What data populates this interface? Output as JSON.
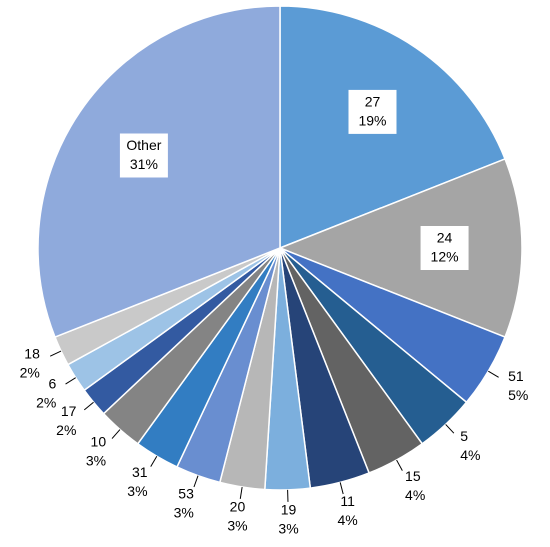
{
  "chart_data": {
    "type": "pie",
    "categories": [
      "27",
      "24",
      "51",
      "5",
      "15",
      "11",
      "19",
      "20",
      "53",
      "31",
      "10",
      "17",
      "6",
      "18",
      "Other"
    ],
    "values": [
      19,
      12,
      5,
      4,
      4,
      4,
      3,
      3,
      3,
      3,
      3,
      2,
      2,
      2,
      31
    ],
    "value_labels": [
      "19%",
      "12%",
      "5%",
      "4%",
      "4%",
      "4%",
      "3%",
      "3%",
      "3%",
      "3%",
      "3%",
      "2%",
      "2%",
      "2%",
      "31%"
    ],
    "colors": [
      "#5b9bd5",
      "#a5a5a5",
      "#4472c4",
      "#255e91",
      "#636363",
      "#264478",
      "#7cafdd",
      "#b7b7b7",
      "#698ed0",
      "#327dc2",
      "#848484",
      "#335aa1",
      "#9dc3e6",
      "#c9c9c9",
      "#8faadc"
    ]
  }
}
